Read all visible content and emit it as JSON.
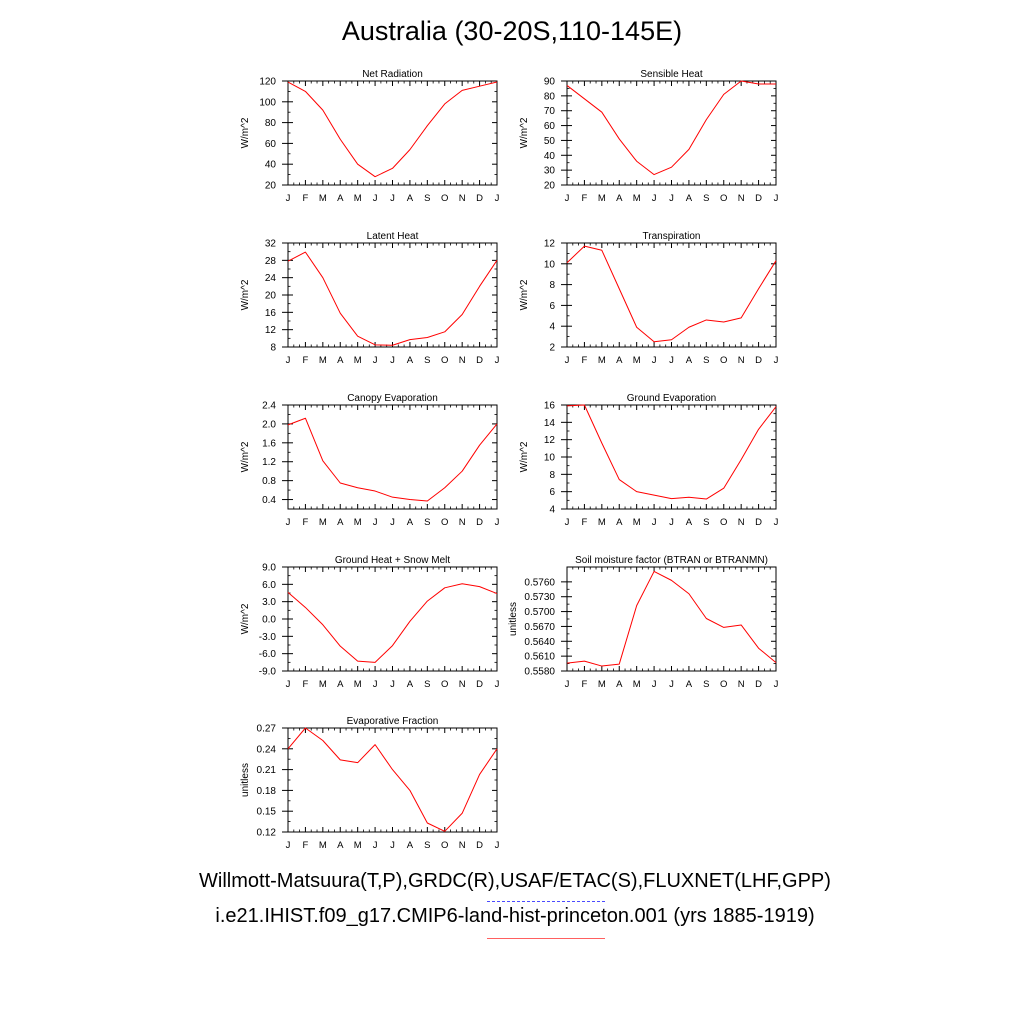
{
  "title": "Australia (30-20S,110-145E)",
  "legend": {
    "observations": "Willmott-Matsuura(T,P),GRDC(R),USAF/ETAC(S),FLUXNET(LHF,GPP)",
    "model": "i.e21.IHIST.f09_g17.CMIP6-land-hist-princeton.001 (yrs 1885-1919)",
    "observations_color": "#4b4bff",
    "model_color": "#ff0000"
  },
  "chart_data": [
    {
      "type": "line",
      "title": "Net Radiation",
      "ylabel": "W/m^2",
      "categories": [
        "J",
        "F",
        "M",
        "A",
        "M",
        "J",
        "J",
        "A",
        "S",
        "O",
        "N",
        "D",
        "J"
      ],
      "ylim": [
        20,
        120
      ],
      "yticks": [
        20,
        40,
        60,
        80,
        100,
        120
      ],
      "yticklabels": [
        "20",
        "40",
        "60",
        "80",
        "100",
        "120"
      ],
      "series": [
        {
          "color": "#ff0000",
          "values": [
            119,
            110,
            92,
            64,
            40,
            28,
            36,
            54,
            77,
            98,
            111,
            115,
            119
          ]
        }
      ]
    },
    {
      "type": "line",
      "title": "Sensible Heat",
      "ylabel": "W/m^2",
      "categories": [
        "J",
        "F",
        "M",
        "A",
        "M",
        "J",
        "J",
        "A",
        "S",
        "O",
        "N",
        "D",
        "J"
      ],
      "ylim": [
        20,
        90
      ],
      "yticks": [
        20,
        30,
        40,
        50,
        60,
        70,
        80,
        90
      ],
      "yticklabels": [
        "20",
        "30",
        "40",
        "50",
        "60",
        "70",
        "80",
        "90"
      ],
      "series": [
        {
          "color": "#ff0000",
          "values": [
            87,
            78,
            69,
            51,
            36,
            27,
            32,
            44,
            64,
            81,
            90,
            88,
            88
          ]
        }
      ]
    },
    {
      "type": "line",
      "title": "Latent Heat",
      "ylabel": "W/m^2",
      "categories": [
        "J",
        "F",
        "M",
        "A",
        "M",
        "J",
        "J",
        "A",
        "S",
        "O",
        "N",
        "D",
        "J"
      ],
      "ylim": [
        8,
        32
      ],
      "yticks": [
        8,
        12,
        16,
        20,
        24,
        28,
        32
      ],
      "yticklabels": [
        "8",
        "12",
        "16",
        "20",
        "24",
        "28",
        "32"
      ],
      "series": [
        {
          "color": "#ff0000",
          "values": [
            27.8,
            29.9,
            24.0,
            15.8,
            10.5,
            8.5,
            8.4,
            9.7,
            10.2,
            11.5,
            15.5,
            22.0,
            28.0
          ]
        }
      ]
    },
    {
      "type": "line",
      "title": "Transpiration",
      "ylabel": "W/m^2",
      "categories": [
        "J",
        "F",
        "M",
        "A",
        "M",
        "J",
        "J",
        "A",
        "S",
        "O",
        "N",
        "D",
        "J"
      ],
      "ylim": [
        2,
        12
      ],
      "yticks": [
        2,
        4,
        6,
        8,
        10,
        12
      ],
      "yticklabels": [
        "2",
        "4",
        "6",
        "8",
        "10",
        "12"
      ],
      "series": [
        {
          "color": "#ff0000",
          "values": [
            10.1,
            11.7,
            11.3,
            7.6,
            3.9,
            2.5,
            2.7,
            3.9,
            4.6,
            4.4,
            4.8,
            7.6,
            10.3
          ]
        }
      ]
    },
    {
      "type": "line",
      "title": "Canopy Evaporation",
      "ylabel": "W/m^2",
      "categories": [
        "J",
        "F",
        "M",
        "A",
        "M",
        "J",
        "J",
        "A",
        "S",
        "O",
        "N",
        "D",
        "J"
      ],
      "ylim": [
        0.2,
        2.4
      ],
      "yticks": [
        0.4,
        0.8,
        1.2,
        1.6,
        2.0,
        2.4
      ],
      "yticklabels": [
        "0.4",
        "0.8",
        "1.2",
        "1.6",
        "2.0",
        "2.4"
      ],
      "series": [
        {
          "color": "#ff0000",
          "values": [
            1.98,
            2.12,
            1.22,
            0.75,
            0.65,
            0.58,
            0.45,
            0.4,
            0.37,
            0.65,
            1.0,
            1.55,
            2.0
          ]
        }
      ]
    },
    {
      "type": "line",
      "title": "Ground Evaporation",
      "ylabel": "W/m^2",
      "categories": [
        "J",
        "F",
        "M",
        "A",
        "M",
        "J",
        "J",
        "A",
        "S",
        "O",
        "N",
        "D",
        "J"
      ],
      "ylim": [
        4,
        16
      ],
      "yticks": [
        4,
        6,
        8,
        10,
        12,
        14,
        16
      ],
      "yticklabels": [
        "4",
        "6",
        "8",
        "10",
        "12",
        "14",
        "16"
      ],
      "series": [
        {
          "color": "#ff0000",
          "values": [
            15.9,
            16.0,
            11.6,
            7.4,
            6.0,
            5.6,
            5.2,
            5.35,
            5.15,
            6.4,
            9.7,
            13.2,
            15.8
          ]
        }
      ]
    },
    {
      "type": "line",
      "title": "Ground Heat + Snow Melt",
      "ylabel": "W/m^2",
      "categories": [
        "J",
        "F",
        "M",
        "A",
        "M",
        "J",
        "J",
        "A",
        "S",
        "O",
        "N",
        "D",
        "J"
      ],
      "ylim": [
        -9,
        9
      ],
      "yticks": [
        -9,
        -6,
        -3,
        0,
        3,
        6,
        9
      ],
      "yticklabels": [
        "-9.0",
        "-6.0",
        "-3.0",
        "0.0",
        "3.0",
        "6.0",
        "9.0"
      ],
      "series": [
        {
          "color": "#ff0000",
          "values": [
            4.6,
            2.0,
            -1.0,
            -4.7,
            -7.3,
            -7.5,
            -4.6,
            -0.4,
            3.1,
            5.4,
            6.1,
            5.6,
            4.4
          ]
        }
      ]
    },
    {
      "type": "line",
      "title": "Soil moisture factor (BTRAN or BTRANMN)",
      "ylabel": "unitless",
      "categories": [
        "J",
        "F",
        "M",
        "A",
        "M",
        "J",
        "J",
        "A",
        "S",
        "O",
        "N",
        "D",
        "J"
      ],
      "ylim": [
        0.558,
        0.579
      ],
      "yticks": [
        0.558,
        0.561,
        0.564,
        0.567,
        0.57,
        0.573,
        0.576
      ],
      "yticklabels": [
        "0.5580",
        "0.5610",
        "0.5640",
        "0.5670",
        "0.5700",
        "0.5730",
        "0.5760"
      ],
      "series": [
        {
          "color": "#ff0000",
          "values": [
            0.5596,
            0.56,
            0.559,
            0.5594,
            0.5712,
            0.5781,
            0.5763,
            0.5736,
            0.5686,
            0.5668,
            0.5673,
            0.5626,
            0.5597
          ]
        }
      ]
    },
    {
      "type": "line",
      "title": "Evaporative Fraction",
      "ylabel": "unitless",
      "categories": [
        "J",
        "F",
        "M",
        "A",
        "M",
        "J",
        "J",
        "A",
        "S",
        "O",
        "N",
        "D",
        "J"
      ],
      "ylim": [
        0.12,
        0.27
      ],
      "yticks": [
        0.12,
        0.15,
        0.18,
        0.21,
        0.24,
        0.27
      ],
      "yticklabels": [
        "0.12",
        "0.15",
        "0.18",
        "0.21",
        "0.24",
        "0.27"
      ],
      "series": [
        {
          "color": "#ff0000",
          "values": [
            0.24,
            0.27,
            0.252,
            0.224,
            0.22,
            0.246,
            0.21,
            0.18,
            0.133,
            0.121,
            0.147,
            0.203,
            0.24
          ]
        }
      ]
    }
  ]
}
